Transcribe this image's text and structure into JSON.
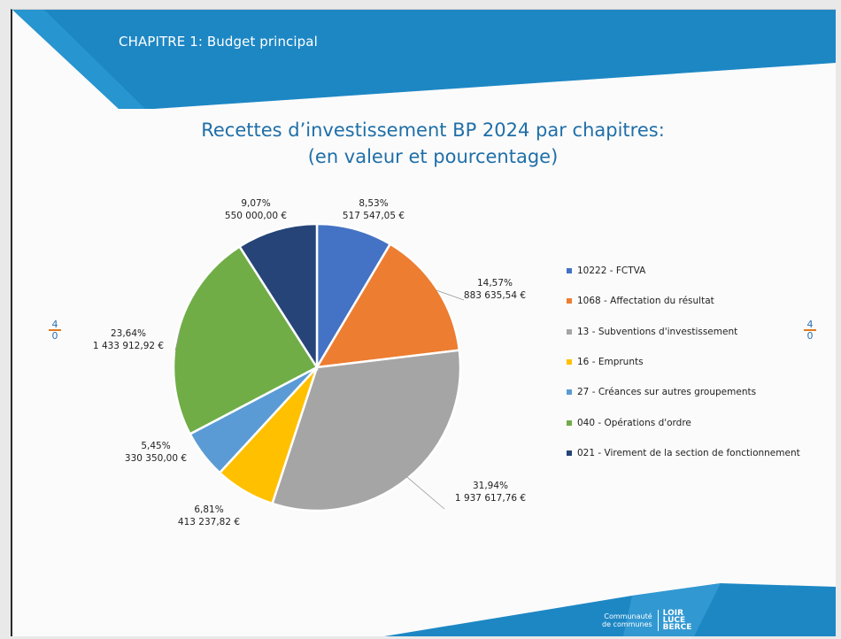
{
  "header": {
    "label": "CHAPITRE 1: Budget principal"
  },
  "side_marks": {
    "left_top": "4",
    "left_bottom": "0",
    "right_top": "4",
    "right_bottom": "0"
  },
  "logo": {
    "line1": "Communauté",
    "line2": "de communes",
    "mark_line1": "LOIR",
    "mark_line2": "LUCE",
    "mark_line3": "BERCE"
  },
  "colors": {
    "band": "#1d87c4",
    "title": "#1f6fa8"
  },
  "chart_data": {
    "type": "pie",
    "title_line1": "Recettes d’investissement BP 2024 par chapitres:",
    "title_line2": "(en valeur et pourcentage)",
    "legend_position": "right",
    "slices": [
      {
        "name": "10222 - FCTVA",
        "percent_label": "8,53%",
        "value_label": "517 547,05 €",
        "value": 517547.05,
        "color": "#4472c4"
      },
      {
        "name": "1068 - Affectation du résultat",
        "percent_label": "14,57%",
        "value_label": "883 635,54 €",
        "value": 883635.54,
        "color": "#ed7d31"
      },
      {
        "name": "13 - Subventions d'investissement",
        "percent_label": "31,94%",
        "value_label": "1 937 617,76 €",
        "value": 1937617.76,
        "color": "#a5a5a5"
      },
      {
        "name": "16 - Emprunts",
        "percent_label": "6,81%",
        "value_label": "413 237,82 €",
        "value": 413237.82,
        "color": "#ffc000"
      },
      {
        "name": "27 - Créances sur autres groupements",
        "percent_label": "5,45%",
        "value_label": "330 350,00 €",
        "value": 330350.0,
        "color": "#5b9bd5"
      },
      {
        "name": "040 - Opérations d'ordre",
        "percent_label": "23,64%",
        "value_label": "1 433 912,92 €",
        "value": 1433912.92,
        "color": "#70ad47"
      },
      {
        "name": "021 - Virement de la section de fonctionnement",
        "percent_label": "9,07%",
        "value_label": "550 000,00 €",
        "value": 550000.0,
        "color": "#264478"
      }
    ]
  }
}
